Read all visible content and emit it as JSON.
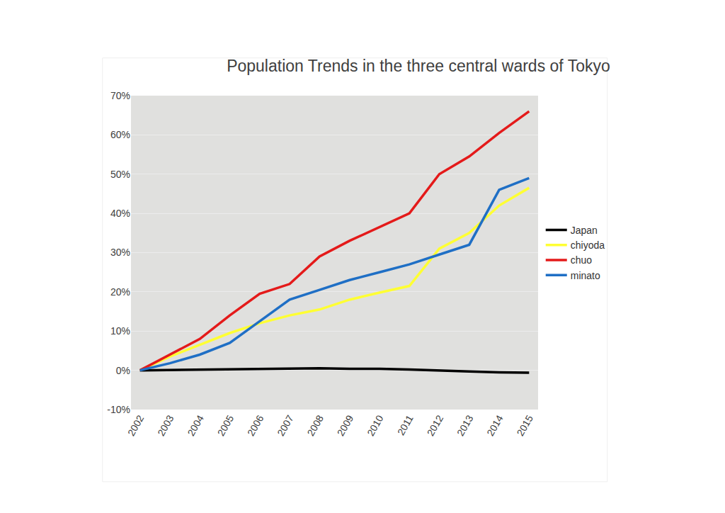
{
  "chart_data": {
    "type": "line",
    "title": "Population Trends in the three central wards of Tokyo",
    "categories": [
      "2002",
      "2003",
      "2004",
      "2005",
      "2006",
      "2007",
      "2008",
      "2009",
      "2010",
      "2011",
      "2012",
      "2013",
      "2014",
      "2015"
    ],
    "series": [
      {
        "name": "Japan",
        "color": "#000000",
        "values": [
          0,
          0.1,
          0.2,
          0.2,
          0.3,
          0.4,
          0.5,
          0.4,
          0.4,
          0.2,
          -0.1,
          -0.3,
          -0.5,
          -0.6
        ]
      },
      {
        "name": "chiyoda",
        "color": "#ffff33",
        "values": [
          0,
          3.5,
          6.5,
          9.5,
          12,
          14,
          15.5,
          18,
          19.8,
          21.5,
          31,
          35,
          42,
          46.5
        ]
      },
      {
        "name": "chuo",
        "color": "#e41a1a",
        "values": [
          0,
          4,
          8,
          14,
          19.5,
          22,
          29,
          33,
          36.5,
          40,
          50,
          54.5,
          60.5,
          66
        ]
      },
      {
        "name": "minato",
        "color": "#1f6fc5",
        "values": [
          0,
          1.8,
          4,
          7,
          12.5,
          18,
          20.5,
          23,
          25,
          27,
          29.5,
          32,
          46,
          49
        ]
      }
    ],
    "ylim": [
      -10,
      70
    ],
    "yticks": [
      {
        "value": -10,
        "label": "-10%"
      },
      {
        "value": 0,
        "label": "0%"
      },
      {
        "value": 10,
        "label": "10%"
      },
      {
        "value": 20,
        "label": "20%"
      },
      {
        "value": 30,
        "label": "30%"
      },
      {
        "value": 40,
        "label": "40%"
      },
      {
        "value": 50,
        "label": "50%"
      },
      {
        "value": 60,
        "label": "60%"
      },
      {
        "value": 70,
        "label": "70%"
      }
    ],
    "grid": true,
    "legend": "right"
  }
}
